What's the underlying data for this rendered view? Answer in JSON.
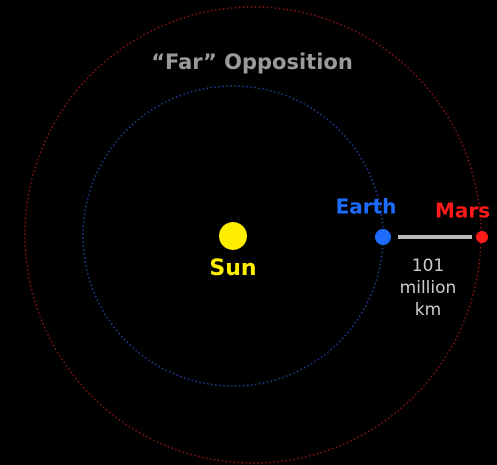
{
  "title": "“Far” Opposition",
  "bodies": {
    "sun": "Sun",
    "earth": "Earth",
    "mars": "Mars"
  },
  "distance_label": [
    "101",
    "million",
    "km"
  ]
}
